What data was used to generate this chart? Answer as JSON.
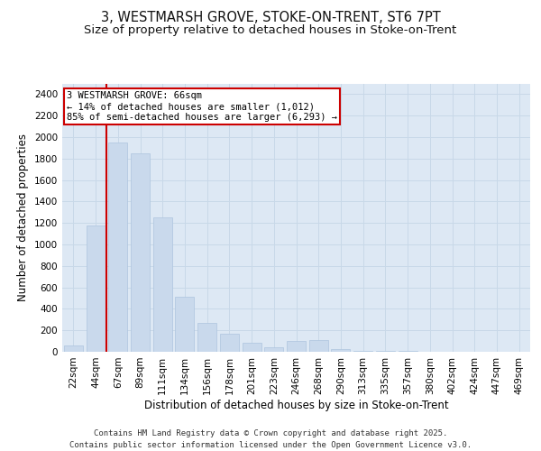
{
  "title_line1": "3, WESTMARSH GROVE, STOKE-ON-TRENT, ST6 7PT",
  "title_line2": "Size of property relative to detached houses in Stoke-on-Trent",
  "xlabel": "Distribution of detached houses by size in Stoke-on-Trent",
  "ylabel": "Number of detached properties",
  "categories": [
    "22sqm",
    "44sqm",
    "67sqm",
    "89sqm",
    "111sqm",
    "134sqm",
    "156sqm",
    "178sqm",
    "201sqm",
    "223sqm",
    "246sqm",
    "268sqm",
    "290sqm",
    "313sqm",
    "335sqm",
    "357sqm",
    "380sqm",
    "402sqm",
    "424sqm",
    "447sqm",
    "469sqm"
  ],
  "values": [
    60,
    1180,
    1950,
    1850,
    1250,
    510,
    270,
    165,
    80,
    40,
    100,
    110,
    25,
    10,
    5,
    5,
    3,
    3,
    2,
    2,
    1
  ],
  "bar_color": "#c9d9ec",
  "bar_edge_color": "#adc4de",
  "grid_color": "#c8d8e8",
  "background_color": "#dde8f4",
  "annotation_text": "3 WESTMARSH GROVE: 66sqm\n← 14% of detached houses are smaller (1,012)\n85% of semi-detached houses are larger (6,293) →",
  "annotation_box_color": "#ffffff",
  "annotation_border_color": "#cc0000",
  "vline_color": "#cc0000",
  "ylim": [
    0,
    2500
  ],
  "yticks": [
    0,
    200,
    400,
    600,
    800,
    1000,
    1200,
    1400,
    1600,
    1800,
    2000,
    2200,
    2400
  ],
  "footer_line1": "Contains HM Land Registry data © Crown copyright and database right 2025.",
  "footer_line2": "Contains public sector information licensed under the Open Government Licence v3.0.",
  "title_fontsize": 10.5,
  "subtitle_fontsize": 9.5,
  "axis_label_fontsize": 8.5,
  "tick_fontsize": 7.5,
  "annotation_fontsize": 7.5,
  "footer_fontsize": 6.5
}
